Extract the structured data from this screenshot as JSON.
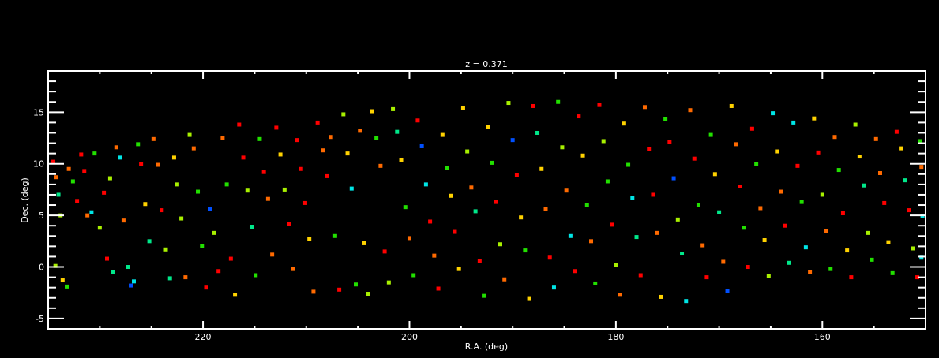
{
  "chart_data": {
    "type": "scatter",
    "title": "z = 0.371",
    "xlabel": "R.A. (deg)",
    "ylabel": "Dec. (deg)",
    "xlim": [
      235,
      150
    ],
    "ylim": [
      -6,
      19
    ],
    "x_reversed": true,
    "xticks": [
      220,
      200,
      180,
      160
    ],
    "xtick_labels": [
      "220",
      "200",
      "180",
      "160"
    ],
    "yticks": [
      -5,
      0,
      5,
      10,
      15
    ],
    "ytick_labels": [
      "-5",
      "0",
      "5",
      "10",
      "15"
    ],
    "grid": false,
    "background": "#000000",
    "axis_color": "#ffffff",
    "palette": {
      "r": "#ff0000",
      "o": "#ff6a00",
      "y": "#ffd200",
      "l": "#a8f000",
      "g": "#22e000",
      "s": "#00e88a",
      "c": "#00e6e6",
      "b": "#0050ff",
      "v": "#3000e0"
    },
    "points": [
      [
        234.5,
        10.2,
        "r"
      ],
      [
        234.2,
        8.7,
        "o"
      ],
      [
        234.0,
        7.0,
        "s"
      ],
      [
        233.8,
        5.0,
        "l"
      ],
      [
        234.3,
        0.1,
        "l"
      ],
      [
        233.6,
        -1.3,
        "y"
      ],
      [
        233.2,
        -1.9,
        "g"
      ],
      [
        233.0,
        9.5,
        "o"
      ],
      [
        232.6,
        8.3,
        "g"
      ],
      [
        232.2,
        6.4,
        "r"
      ],
      [
        231.8,
        10.9,
        "r"
      ],
      [
        231.5,
        9.3,
        "r"
      ],
      [
        231.2,
        5.0,
        "o"
      ],
      [
        230.8,
        5.3,
        "c"
      ],
      [
        230.5,
        11.0,
        "g"
      ],
      [
        230.0,
        3.8,
        "l"
      ],
      [
        229.6,
        7.2,
        "r"
      ],
      [
        229.3,
        0.8,
        "r"
      ],
      [
        229.0,
        8.6,
        "l"
      ],
      [
        228.7,
        -0.5,
        "s"
      ],
      [
        228.4,
        11.6,
        "o"
      ],
      [
        228.0,
        10.6,
        "c"
      ],
      [
        227.7,
        4.5,
        "o"
      ],
      [
        227.3,
        0.0,
        "s"
      ],
      [
        227.0,
        -1.8,
        "b"
      ],
      [
        226.7,
        -1.4,
        "c"
      ],
      [
        226.3,
        11.9,
        "g"
      ],
      [
        226.0,
        10.0,
        "r"
      ],
      [
        225.6,
        6.1,
        "y"
      ],
      [
        225.2,
        2.5,
        "s"
      ],
      [
        224.8,
        12.4,
        "o"
      ],
      [
        224.4,
        9.9,
        "o"
      ],
      [
        224.0,
        5.5,
        "r"
      ],
      [
        223.6,
        1.7,
        "l"
      ],
      [
        223.2,
        -1.1,
        "s"
      ],
      [
        222.8,
        10.6,
        "y"
      ],
      [
        222.5,
        8.0,
        "l"
      ],
      [
        222.1,
        4.7,
        "l"
      ],
      [
        221.7,
        -1.0,
        "o"
      ],
      [
        221.3,
        12.8,
        "l"
      ],
      [
        220.9,
        11.5,
        "o"
      ],
      [
        220.5,
        7.3,
        "g"
      ],
      [
        220.1,
        2.0,
        "g"
      ],
      [
        219.7,
        -2.0,
        "r"
      ],
      [
        219.3,
        5.6,
        "b"
      ],
      [
        218.9,
        3.3,
        "l"
      ],
      [
        218.5,
        -0.4,
        "r"
      ],
      [
        218.1,
        12.5,
        "o"
      ],
      [
        217.7,
        8.0,
        "g"
      ],
      [
        217.3,
        0.8,
        "r"
      ],
      [
        216.9,
        -2.7,
        "y"
      ],
      [
        216.5,
        13.8,
        "r"
      ],
      [
        216.1,
        10.6,
        "r"
      ],
      [
        215.7,
        7.4,
        "l"
      ],
      [
        215.3,
        3.9,
        "s"
      ],
      [
        214.9,
        -0.8,
        "g"
      ],
      [
        214.5,
        12.4,
        "g"
      ],
      [
        214.1,
        9.2,
        "r"
      ],
      [
        213.7,
        6.6,
        "o"
      ],
      [
        213.3,
        1.2,
        "o"
      ],
      [
        212.9,
        13.5,
        "r"
      ],
      [
        212.5,
        10.9,
        "y"
      ],
      [
        212.1,
        7.5,
        "l"
      ],
      [
        211.7,
        4.2,
        "r"
      ],
      [
        211.3,
        -0.2,
        "o"
      ],
      [
        210.9,
        12.3,
        "r"
      ],
      [
        210.5,
        9.5,
        "r"
      ],
      [
        210.1,
        6.2,
        "r"
      ],
      [
        209.7,
        2.7,
        "y"
      ],
      [
        209.3,
        -2.4,
        "o"
      ],
      [
        208.9,
        14.0,
        "r"
      ],
      [
        208.4,
        11.3,
        "o"
      ],
      [
        208.0,
        8.8,
        "r"
      ],
      [
        207.6,
        12.6,
        "o"
      ],
      [
        207.2,
        3.0,
        "g"
      ],
      [
        206.8,
        -2.2,
        "r"
      ],
      [
        206.4,
        14.8,
        "l"
      ],
      [
        206.0,
        11.0,
        "y"
      ],
      [
        205.6,
        7.6,
        "c"
      ],
      [
        205.2,
        -1.7,
        "g"
      ],
      [
        204.8,
        13.2,
        "o"
      ],
      [
        204.4,
        2.3,
        "y"
      ],
      [
        204.0,
        -2.6,
        "l"
      ],
      [
        203.6,
        15.1,
        "y"
      ],
      [
        203.2,
        12.5,
        "g"
      ],
      [
        202.8,
        9.8,
        "o"
      ],
      [
        202.4,
        1.5,
        "r"
      ],
      [
        202.0,
        -1.5,
        "l"
      ],
      [
        201.6,
        15.3,
        "l"
      ],
      [
        201.2,
        13.1,
        "s"
      ],
      [
        200.8,
        10.4,
        "y"
      ],
      [
        200.4,
        5.8,
        "g"
      ],
      [
        200.0,
        2.8,
        "o"
      ],
      [
        199.6,
        -0.8,
        "g"
      ],
      [
        199.2,
        14.2,
        "r"
      ],
      [
        198.8,
        11.7,
        "b"
      ],
      [
        198.4,
        8.0,
        "c"
      ],
      [
        198.0,
        4.4,
        "r"
      ],
      [
        197.6,
        1.1,
        "o"
      ],
      [
        197.2,
        -2.1,
        "r"
      ],
      [
        196.8,
        12.8,
        "y"
      ],
      [
        196.4,
        9.6,
        "g"
      ],
      [
        196.0,
        6.9,
        "y"
      ],
      [
        195.6,
        3.4,
        "r"
      ],
      [
        195.2,
        -0.2,
        "y"
      ],
      [
        194.8,
        15.4,
        "y"
      ],
      [
        194.4,
        11.2,
        "l"
      ],
      [
        194.0,
        7.7,
        "o"
      ],
      [
        193.6,
        5.4,
        "s"
      ],
      [
        193.2,
        0.6,
        "r"
      ],
      [
        192.8,
        -2.8,
        "g"
      ],
      [
        192.4,
        13.6,
        "y"
      ],
      [
        192.0,
        10.1,
        "g"
      ],
      [
        191.6,
        6.3,
        "r"
      ],
      [
        191.2,
        2.2,
        "l"
      ],
      [
        190.8,
        -1.2,
        "o"
      ],
      [
        190.4,
        15.9,
        "l"
      ],
      [
        190.0,
        12.3,
        "b"
      ],
      [
        189.6,
        8.9,
        "r"
      ],
      [
        189.2,
        4.8,
        "y"
      ],
      [
        188.8,
        1.6,
        "g"
      ],
      [
        188.4,
        -3.1,
        "y"
      ],
      [
        188.0,
        15.6,
        "r"
      ],
      [
        187.6,
        13.0,
        "s"
      ],
      [
        187.2,
        9.5,
        "y"
      ],
      [
        186.8,
        5.6,
        "o"
      ],
      [
        186.4,
        0.9,
        "r"
      ],
      [
        186.0,
        -2.0,
        "c"
      ],
      [
        185.6,
        16.0,
        "g"
      ],
      [
        185.2,
        11.6,
        "l"
      ],
      [
        184.8,
        7.4,
        "o"
      ],
      [
        184.4,
        3.0,
        "c"
      ],
      [
        184.0,
        -0.4,
        "r"
      ],
      [
        183.6,
        14.6,
        "r"
      ],
      [
        183.2,
        10.8,
        "y"
      ],
      [
        182.8,
        6.0,
        "g"
      ],
      [
        182.4,
        2.5,
        "o"
      ],
      [
        182.0,
        -1.6,
        "g"
      ],
      [
        181.6,
        15.7,
        "r"
      ],
      [
        181.2,
        12.2,
        "l"
      ],
      [
        180.8,
        8.3,
        "g"
      ],
      [
        180.4,
        4.1,
        "r"
      ],
      [
        180.0,
        0.2,
        "l"
      ],
      [
        179.6,
        -2.7,
        "o"
      ],
      [
        179.2,
        13.9,
        "y"
      ],
      [
        178.8,
        9.9,
        "g"
      ],
      [
        178.4,
        6.7,
        "c"
      ],
      [
        178.0,
        2.9,
        "s"
      ],
      [
        177.6,
        -0.8,
        "r"
      ],
      [
        177.2,
        15.5,
        "o"
      ],
      [
        176.8,
        11.4,
        "r"
      ],
      [
        176.4,
        7.0,
        "r"
      ],
      [
        176.0,
        3.3,
        "o"
      ],
      [
        175.6,
        -2.9,
        "y"
      ],
      [
        175.2,
        14.3,
        "g"
      ],
      [
        174.8,
        12.1,
        "r"
      ],
      [
        174.4,
        8.6,
        "b"
      ],
      [
        174.0,
        4.6,
        "l"
      ],
      [
        173.6,
        1.3,
        "s"
      ],
      [
        173.2,
        -3.3,
        "c"
      ],
      [
        172.8,
        15.2,
        "o"
      ],
      [
        172.4,
        10.5,
        "r"
      ],
      [
        172.0,
        6.0,
        "g"
      ],
      [
        171.6,
        2.1,
        "o"
      ],
      [
        171.2,
        -1.0,
        "r"
      ],
      [
        170.8,
        12.8,
        "g"
      ],
      [
        170.4,
        9.0,
        "y"
      ],
      [
        170.0,
        5.3,
        "s"
      ],
      [
        169.6,
        0.5,
        "o"
      ],
      [
        169.2,
        -2.3,
        "b"
      ],
      [
        168.8,
        15.6,
        "y"
      ],
      [
        168.4,
        11.9,
        "o"
      ],
      [
        168.0,
        7.8,
        "r"
      ],
      [
        167.6,
        3.8,
        "g"
      ],
      [
        167.2,
        0.0,
        "r"
      ],
      [
        166.8,
        13.4,
        "r"
      ],
      [
        166.4,
        10.0,
        "g"
      ],
      [
        166.0,
        5.7,
        "o"
      ],
      [
        165.6,
        2.6,
        "y"
      ],
      [
        165.2,
        -0.9,
        "l"
      ],
      [
        164.8,
        14.9,
        "c"
      ],
      [
        164.4,
        11.2,
        "y"
      ],
      [
        164.0,
        7.3,
        "o"
      ],
      [
        163.6,
        4.0,
        "r"
      ],
      [
        163.2,
        0.4,
        "s"
      ],
      [
        162.8,
        14.0,
        "c"
      ],
      [
        162.4,
        9.8,
        "r"
      ],
      [
        162.0,
        6.3,
        "g"
      ],
      [
        161.6,
        1.9,
        "c"
      ],
      [
        161.2,
        -0.5,
        "o"
      ],
      [
        160.8,
        14.4,
        "y"
      ],
      [
        160.4,
        11.1,
        "r"
      ],
      [
        160.0,
        7.0,
        "l"
      ],
      [
        159.6,
        3.5,
        "o"
      ],
      [
        159.2,
        -0.2,
        "g"
      ],
      [
        158.8,
        12.6,
        "o"
      ],
      [
        158.4,
        9.4,
        "g"
      ],
      [
        158.0,
        5.2,
        "r"
      ],
      [
        157.6,
        1.6,
        "y"
      ],
      [
        157.2,
        -1.0,
        "r"
      ],
      [
        156.8,
        13.8,
        "l"
      ],
      [
        156.4,
        10.7,
        "y"
      ],
      [
        156.0,
        7.9,
        "s"
      ],
      [
        155.6,
        3.3,
        "l"
      ],
      [
        155.2,
        0.7,
        "g"
      ],
      [
        154.8,
        12.4,
        "o"
      ],
      [
        154.4,
        9.1,
        "o"
      ],
      [
        154.0,
        6.2,
        "r"
      ],
      [
        153.6,
        2.4,
        "y"
      ],
      [
        153.2,
        -0.6,
        "g"
      ],
      [
        152.8,
        13.1,
        "r"
      ],
      [
        152.4,
        11.5,
        "y"
      ],
      [
        152.0,
        8.4,
        "s"
      ],
      [
        151.6,
        5.5,
        "r"
      ],
      [
        151.2,
        1.8,
        "l"
      ],
      [
        150.8,
        -1.0,
        "r"
      ],
      [
        150.5,
        12.2,
        "g"
      ],
      [
        150.4,
        9.7,
        "o"
      ],
      [
        150.3,
        4.9,
        "c"
      ],
      [
        150.4,
        0.9,
        "c"
      ]
    ]
  }
}
